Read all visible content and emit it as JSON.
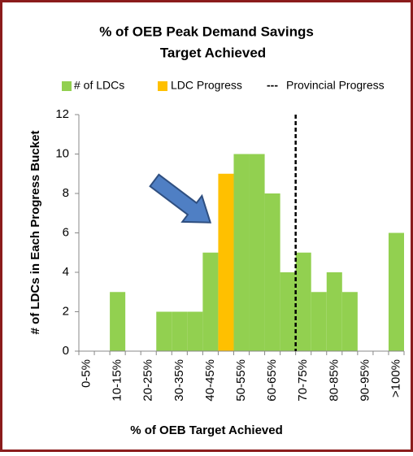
{
  "chart_data": {
    "type": "histogram",
    "title": [
      "% of OEB Peak Demand Savings",
      "Target Achieved"
    ],
    "x_label": "% of OEB Target Achieved",
    "y_label": "# of LDCs in Each Progress Bucket",
    "bins": [
      0,
      5,
      10,
      15,
      20,
      25,
      30,
      35,
      40,
      45,
      50,
      55,
      60,
      65,
      70,
      75,
      80,
      85,
      90,
      95,
      100,
      105
    ],
    "categories": [
      "0-5%",
      null,
      "10-15%",
      null,
      "20-25%",
      null,
      "30-35%",
      null,
      "40-45%",
      null,
      "50-55%",
      null,
      "60-65%",
      null,
      "70-75%",
      null,
      "80-85%",
      null,
      "90-95%",
      null,
      ">100%"
    ],
    "series": [
      {
        "name": "# of LDCs",
        "color": "#92d050",
        "values": [
          0,
          0,
          3,
          0,
          0,
          2,
          2,
          2,
          5,
          null,
          10,
          10,
          8,
          4,
          5,
          3,
          4,
          3,
          0,
          0,
          6
        ]
      },
      {
        "name": "LDC Progress",
        "color": "#ffc000",
        "values": [
          null,
          null,
          null,
          null,
          null,
          null,
          null,
          null,
          null,
          9,
          null,
          null,
          null,
          null,
          null,
          null,
          null,
          null,
          null,
          null,
          null
        ]
      }
    ],
    "reference_line": {
      "name": "Provincial Progress",
      "legend_symbol": "---",
      "value": 70,
      "color": "#000000"
    },
    "xlim": [
      0,
      105
    ],
    "ylim": [
      0,
      12
    ],
    "yticks": [
      0,
      2,
      4,
      6,
      8,
      10,
      12
    ],
    "grid": false
  }
}
